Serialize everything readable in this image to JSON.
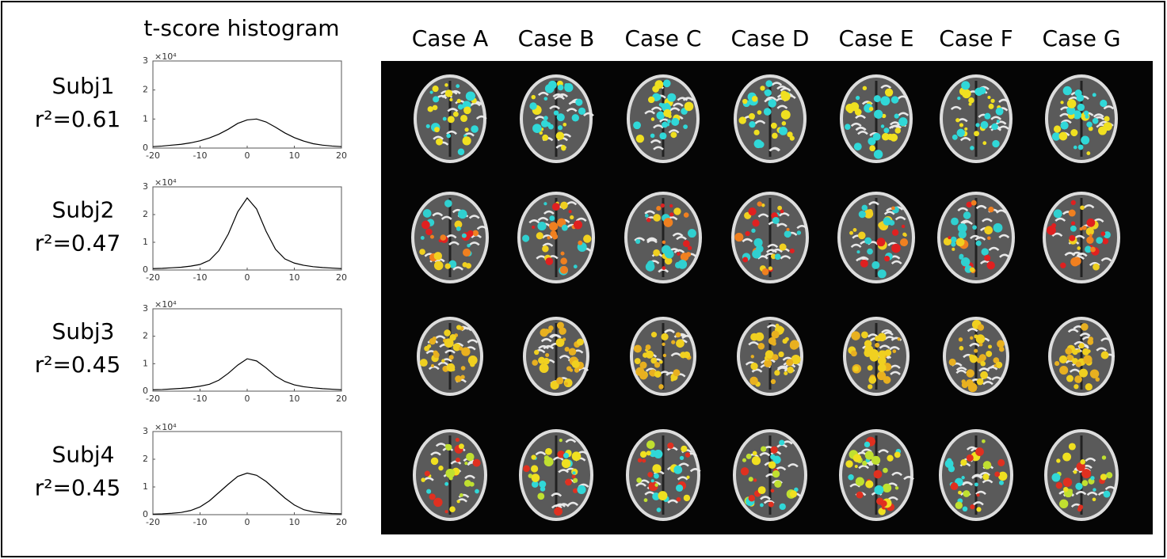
{
  "title": "t-score histogram",
  "cases": [
    "Case A",
    "Case B",
    "Case C",
    "Case D",
    "Case E",
    "Case F",
    "Case G"
  ],
  "subjects": [
    {
      "name": "Subj1",
      "r2": "r²=0.61"
    },
    {
      "name": "Subj2",
      "r2": "r²=0.47"
    },
    {
      "name": "Subj3",
      "r2": "r²=0.45"
    },
    {
      "name": "Subj4",
      "r2": "r²=0.45"
    }
  ],
  "chart_data": [
    {
      "type": "line",
      "y_multiplier": "×10⁴",
      "color": "#000000",
      "x": [
        -20,
        -18,
        -16,
        -14,
        -12,
        -10,
        -8,
        -6,
        -4,
        -2,
        0,
        2,
        4,
        6,
        8,
        10,
        12,
        14,
        16,
        18,
        20
      ],
      "values": [
        0.05,
        0.07,
        0.1,
        0.13,
        0.18,
        0.25,
        0.35,
        0.48,
        0.65,
        0.85,
        0.97,
        1.0,
        0.9,
        0.72,
        0.52,
        0.36,
        0.24,
        0.15,
        0.1,
        0.07,
        0.05
      ],
      "xlim": [
        -20,
        20
      ],
      "xticks": [
        -20,
        -10,
        0,
        10,
        20
      ],
      "ylim": [
        0,
        3
      ],
      "yticks": [
        0,
        1,
        2,
        3
      ]
    },
    {
      "type": "line",
      "y_multiplier": "×10⁴",
      "color": "#000000",
      "x": [
        -20,
        -18,
        -16,
        -14,
        -12,
        -10,
        -8,
        -6,
        -4,
        -2,
        0,
        2,
        4,
        6,
        8,
        10,
        12,
        14,
        16,
        18,
        20
      ],
      "values": [
        0.05,
        0.06,
        0.08,
        0.1,
        0.14,
        0.2,
        0.35,
        0.7,
        1.3,
        2.1,
        2.6,
        2.2,
        1.4,
        0.75,
        0.4,
        0.25,
        0.17,
        0.12,
        0.09,
        0.07,
        0.05
      ],
      "xlim": [
        -20,
        20
      ],
      "xticks": [
        -20,
        -10,
        0,
        10,
        20
      ],
      "ylim": [
        0,
        3
      ],
      "yticks": [
        0,
        1,
        2,
        3
      ]
    },
    {
      "type": "line",
      "y_multiplier": "×10⁴",
      "color": "#000000",
      "x": [
        -20,
        -18,
        -16,
        -14,
        -12,
        -10,
        -8,
        -6,
        -4,
        -2,
        0,
        2,
        4,
        6,
        8,
        10,
        12,
        14,
        16,
        18,
        20
      ],
      "values": [
        0.05,
        0.06,
        0.08,
        0.1,
        0.13,
        0.18,
        0.25,
        0.4,
        0.65,
        0.95,
        1.18,
        1.1,
        0.85,
        0.55,
        0.35,
        0.23,
        0.16,
        0.12,
        0.09,
        0.07,
        0.05
      ],
      "xlim": [
        -20,
        20
      ],
      "xticks": [
        -20,
        -10,
        0,
        10,
        20
      ],
      "ylim": [
        0,
        3
      ],
      "yticks": [
        0,
        1,
        2,
        3
      ]
    },
    {
      "type": "line",
      "y_multiplier": "×10⁴",
      "color": "#000000",
      "x": [
        -20,
        -18,
        -16,
        -14,
        -12,
        -10,
        -8,
        -6,
        -4,
        -2,
        0,
        2,
        4,
        6,
        8,
        10,
        12,
        14,
        16,
        18,
        20
      ],
      "values": [
        0.02,
        0.03,
        0.05,
        0.08,
        0.15,
        0.28,
        0.5,
        0.8,
        1.1,
        1.38,
        1.5,
        1.42,
        1.2,
        0.9,
        0.6,
        0.35,
        0.18,
        0.1,
        0.06,
        0.04,
        0.03
      ],
      "xlim": [
        -20,
        20
      ],
      "xticks": [
        -20,
        -10,
        0,
        10,
        20
      ],
      "ylim": [
        0,
        3
      ],
      "yticks": [
        0,
        1,
        2,
        3
      ]
    }
  ]
}
